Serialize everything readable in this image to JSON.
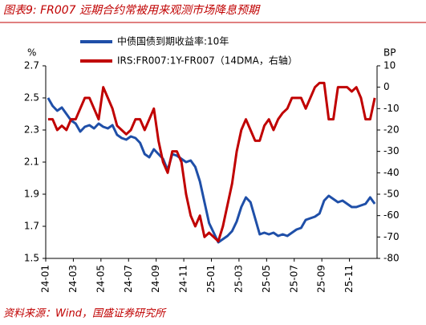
{
  "chart_data": {
    "type": "line",
    "title": "图表9:  FR007 远期合约常被用来观测市场降息预期",
    "source": "资料来源：Wind，国盛证券研究所",
    "y_label": "%",
    "y2_label": "BP",
    "categories": [
      "24-01",
      null,
      null,
      null,
      null,
      null,
      "24-03",
      null,
      null,
      null,
      null,
      null,
      "24-05",
      null,
      null,
      null,
      null,
      null,
      "24-07",
      null,
      null,
      null,
      null,
      null,
      "24-09",
      null,
      null,
      null,
      null,
      null,
      "24-11",
      null,
      null,
      null,
      null,
      null,
      "25-01",
      null,
      null,
      null,
      null,
      null,
      "25-03",
      null,
      null,
      null,
      null,
      null,
      "25-05",
      null,
      null,
      null,
      null,
      null,
      "25-07",
      null,
      null,
      null,
      null,
      null,
      "25-09",
      null,
      null,
      null,
      null,
      null,
      "25-11",
      null,
      null,
      null,
      null,
      null
    ],
    "series": [
      {
        "name": "中债国债到期收益率:10年",
        "color": "#1f4fa8",
        "axis": "y",
        "values": [
          2.5,
          2.45,
          2.42,
          2.44,
          2.4,
          2.36,
          2.34,
          2.29,
          2.32,
          2.33,
          2.31,
          2.34,
          2.32,
          2.31,
          2.33,
          2.27,
          2.25,
          2.24,
          2.26,
          2.25,
          2.22,
          2.15,
          2.13,
          2.18,
          2.15,
          2.12,
          2.05,
          2.15,
          2.14,
          2.12,
          2.1,
          2.11,
          2.07,
          1.98,
          1.85,
          1.72,
          1.66,
          1.6,
          1.62,
          1.64,
          1.67,
          1.73,
          1.82,
          1.88,
          1.85,
          1.75,
          1.65,
          1.66,
          1.65,
          1.66,
          1.64,
          1.65,
          1.64,
          1.66,
          1.68,
          1.69,
          1.74,
          1.75,
          1.76,
          1.78,
          1.86,
          1.89,
          1.87,
          1.85,
          1.86,
          1.84,
          1.82,
          1.82,
          1.83,
          1.84,
          1.88,
          1.84
        ]
      },
      {
        "name": "IRS:FR007:1Y-FR007（14DMA，右轴）",
        "color": "#c00000",
        "axis": "y2",
        "values": [
          -15,
          -15,
          -20,
          -18,
          -20,
          -15,
          -15,
          -10,
          -5,
          -5,
          -10,
          -15,
          0,
          -5,
          -10,
          -18,
          -20,
          -22,
          -20,
          -15,
          -15,
          -20,
          -15,
          -10,
          -25,
          -35,
          -40,
          -30,
          -30,
          -35,
          -50,
          -60,
          -65,
          -60,
          -70,
          -68,
          -70,
          -72,
          -65,
          -55,
          -45,
          -30,
          -20,
          -15,
          -20,
          -25,
          -25,
          -18,
          -15,
          -20,
          -15,
          -12,
          -10,
          -5,
          -5,
          -5,
          -10,
          -5,
          0,
          2,
          2,
          -15,
          -15,
          0,
          0,
          0,
          -2,
          0,
          -5,
          -15,
          -15,
          -5
        ]
      }
    ],
    "ylim": [
      1.5,
      2.7
    ],
    "yticks": [
      1.5,
      1.7,
      1.9,
      2.1,
      2.3,
      2.5,
      2.7
    ],
    "y2lim": [
      -80,
      10
    ],
    "y2ticks": [
      -80,
      -70,
      -60,
      -50,
      -40,
      -30,
      -20,
      -10,
      0,
      10
    ]
  }
}
